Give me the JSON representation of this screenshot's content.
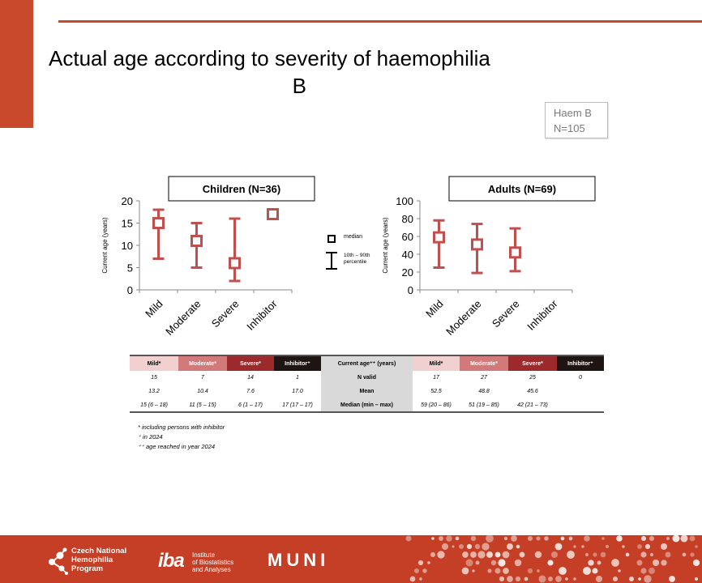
{
  "title": {
    "line1": "Actual age according to severity of haemophilia",
    "line2": "B"
  },
  "haem_box": {
    "line1": "Haem B",
    "line2": "N=105"
  },
  "legend": {
    "median": "median",
    "range_line1": "10th – 90th",
    "range_line2": "percentile"
  },
  "chart_data": [
    {
      "type": "box-range",
      "title": "Children (N=36)",
      "ylabel": "Current age (years)",
      "ylim": [
        0,
        20
      ],
      "yticks": [
        0,
        5,
        10,
        15,
        20
      ],
      "categories": [
        "Mild",
        "Moderate",
        "Severe",
        "Inhibitor"
      ],
      "series": [
        {
          "median": [
            15,
            11,
            6,
            17
          ],
          "p10": [
            7,
            5,
            2,
            17
          ],
          "p90": [
            18,
            15,
            16,
            17
          ]
        }
      ],
      "color": "#c0504d"
    },
    {
      "type": "box-range",
      "title": "Adults (N=69)",
      "ylabel": "Current age (years)",
      "ylim": [
        0,
        100
      ],
      "yticks": [
        0,
        20,
        40,
        60,
        80,
        100
      ],
      "categories": [
        "Mild",
        "Moderate",
        "Severe",
        "Inhibitor"
      ],
      "series": [
        {
          "median": [
            59,
            51,
            42,
            null
          ],
          "p10": [
            25,
            19,
            21,
            null
          ],
          "p90": [
            78,
            74,
            69,
            null
          ]
        }
      ],
      "color": "#c0504d"
    }
  ],
  "table": {
    "headers_left": [
      "Mild*",
      "Moderate*",
      "Severe*",
      "Inhibitor⁺"
    ],
    "header_mid": "Current age⁺⁺ (years)",
    "headers_right": [
      "Mild*",
      "Moderate*",
      "Severe*",
      "Inhibitor⁺"
    ],
    "rows": [
      {
        "left": [
          "15",
          "7",
          "14",
          "1"
        ],
        "label": "N valid",
        "right": [
          "17",
          "27",
          "25",
          "0"
        ]
      },
      {
        "left": [
          "13.2",
          "10.4",
          "7.6",
          "17.0"
        ],
        "label": "Mean",
        "right": [
          "52.5",
          "48.8",
          "45.6",
          ""
        ]
      },
      {
        "left": [
          "15 (6 – 18)",
          "11 (5 – 15)",
          "6 (1 – 17)",
          "17 (17 – 17)"
        ],
        "label": "Median (min – max)",
        "right": [
          "59 (20 – 86)",
          "51 (19 – 85)",
          "42 (21 – 73)",
          ""
        ]
      }
    ]
  },
  "notes": [
    "* including persons with inhibitor",
    "⁺ in 2024",
    "⁺⁺ age reached in year 2024"
  ],
  "footer": {
    "cnhp_line1": "Czech National",
    "cnhp_line2": "Hemophilia",
    "cnhp_line3": "Program",
    "iba_mark": "iba",
    "iba_line1": "Institute",
    "iba_line2": "of Biostatistics",
    "iba_line3": "and Analyses",
    "muni": "MUNI"
  },
  "colors": {
    "accent": "#c8492b",
    "series": "#c0504d",
    "footer": "#c43f25"
  }
}
